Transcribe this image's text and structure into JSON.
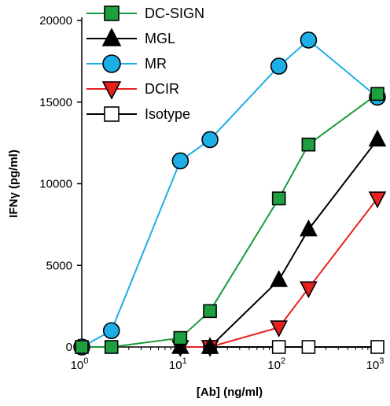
{
  "chart_data": {
    "type": "line",
    "xlabel": "[Ab] (ng/ml)",
    "ylabel": "IFNγ (pg/ml)",
    "x_scale": "log",
    "xlim": [
      1,
      1000
    ],
    "ylim": [
      0,
      20000
    ],
    "x_ticks": [
      {
        "value": 1,
        "base": "10",
        "exp": "0"
      },
      {
        "value": 10,
        "base": "10",
        "exp": "1"
      },
      {
        "value": 100,
        "base": "10",
        "exp": "2"
      },
      {
        "value": 1000,
        "base": "10",
        "exp": "3"
      }
    ],
    "y_ticks": [
      {
        "value": 0,
        "label": "0"
      },
      {
        "value": 5000,
        "label": "5000"
      },
      {
        "value": 10000,
        "label": "10000"
      },
      {
        "value": 15000,
        "label": "15000"
      },
      {
        "value": 20000,
        "label": "20000"
      }
    ],
    "legend_position": "top-left",
    "series": [
      {
        "name": "DC-SIGN",
        "marker": "square",
        "line_color": "#1a9a3a",
        "fill_color": "#1fa040",
        "x": [
          1,
          2,
          10,
          20,
          100,
          200,
          1000
        ],
        "y": [
          0,
          0,
          550,
          2200,
          9100,
          12400,
          15500
        ]
      },
      {
        "name": "MGL",
        "marker": "triangle-up",
        "line_color": "#000000",
        "fill_color": "#000000",
        "x": [
          10,
          20,
          100,
          200,
          1000
        ],
        "y": [
          0,
          0,
          4100,
          7200,
          12700
        ]
      },
      {
        "name": "MR",
        "marker": "circle",
        "line_color": "#1eaee6",
        "fill_color": "#1eaee6",
        "x": [
          1,
          2,
          10,
          20,
          100,
          200,
          1000
        ],
        "y": [
          0,
          1000,
          11400,
          12700,
          17200,
          18800,
          15300
        ]
      },
      {
        "name": "DCIR",
        "marker": "triangle-down",
        "line_color": "#e8201e",
        "fill_color": "#e8201e",
        "x": [
          10,
          20,
          100,
          200,
          1000
        ],
        "y": [
          0,
          0,
          1200,
          3600,
          9100
        ]
      },
      {
        "name": "Isotype",
        "marker": "square-open",
        "line_color": "#000000",
        "fill_color": "#ffffff",
        "x": [
          20,
          100,
          200,
          1000
        ],
        "y": [
          0,
          0,
          0,
          0
        ]
      }
    ]
  }
}
